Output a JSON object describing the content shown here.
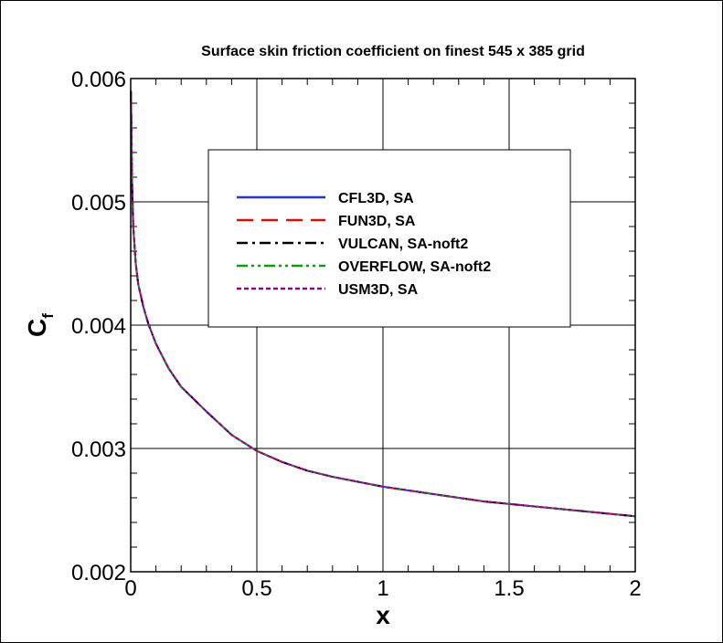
{
  "chart_data": {
    "type": "line",
    "title": "Surface skin friction coefficient on finest 545 x 385 grid",
    "xlabel": "x",
    "ylabel": "C",
    "ylabel_subscript": "f",
    "xlim": [
      0,
      2
    ],
    "ylim": [
      0.002,
      0.006
    ],
    "xticks": [
      0,
      0.5,
      1,
      1.5,
      2
    ],
    "xtick_labels": [
      "0",
      "0.5",
      "1",
      "1.5",
      "2"
    ],
    "yticks": [
      0.002,
      0.003,
      0.004,
      0.005,
      0.006
    ],
    "ytick_labels": [
      "0.002",
      "0.003",
      "0.004",
      "0.005",
      "0.006"
    ],
    "grid": true,
    "legend_position": "upper-center",
    "x": [
      0.001,
      0.005,
      0.01,
      0.02,
      0.03,
      0.05,
      0.07,
      0.1,
      0.15,
      0.2,
      0.3,
      0.4,
      0.5,
      0.6,
      0.7,
      0.8,
      1.0,
      1.2,
      1.4,
      1.6,
      1.8,
      2.0
    ],
    "series": [
      {
        "name": "CFL3D, SA",
        "color": "#2233dd",
        "dash": "solid",
        "values": [
          0.0059,
          0.0052,
          0.0048,
          0.0045,
          0.00433,
          0.00415,
          0.00401,
          0.00385,
          0.00365,
          0.0035,
          0.0033,
          0.00311,
          0.00298,
          0.00289,
          0.00282,
          0.00277,
          0.00269,
          0.00263,
          0.00257,
          0.00253,
          0.00249,
          0.00245
        ]
      },
      {
        "name": "FUN3D, SA",
        "color": "#cc1111",
        "dash": "long-dash",
        "values": [
          0.0059,
          0.0052,
          0.0048,
          0.0045,
          0.00433,
          0.00415,
          0.00401,
          0.00385,
          0.00365,
          0.0035,
          0.0033,
          0.00311,
          0.00298,
          0.00289,
          0.00282,
          0.00277,
          0.00269,
          0.00263,
          0.00257,
          0.00253,
          0.00249,
          0.00245
        ]
      },
      {
        "name": "VULCAN, SA-noft2",
        "color": "#000000",
        "dash": "dash-dot",
        "values": [
          0.0059,
          0.0052,
          0.0048,
          0.0045,
          0.00433,
          0.00415,
          0.00401,
          0.00385,
          0.00365,
          0.0035,
          0.0033,
          0.00311,
          0.00298,
          0.00289,
          0.00282,
          0.00277,
          0.00269,
          0.00263,
          0.00257,
          0.00253,
          0.00249,
          0.00245
        ]
      },
      {
        "name": "OVERFLOW, SA-noft2",
        "color": "#119911",
        "dash": "dash-dot-dot",
        "values": [
          0.0059,
          0.0052,
          0.0048,
          0.0045,
          0.00433,
          0.00415,
          0.00401,
          0.00385,
          0.00365,
          0.0035,
          0.0033,
          0.00311,
          0.00298,
          0.00289,
          0.00282,
          0.00277,
          0.00269,
          0.00263,
          0.00257,
          0.00253,
          0.00249,
          0.00245
        ]
      },
      {
        "name": "USM3D, SA",
        "color": "#990099",
        "dash": "short-dash",
        "values": [
          0.0059,
          0.0052,
          0.0048,
          0.0045,
          0.00433,
          0.00415,
          0.00401,
          0.00385,
          0.00365,
          0.0035,
          0.0033,
          0.00311,
          0.00298,
          0.00289,
          0.00282,
          0.00277,
          0.00269,
          0.00263,
          0.00257,
          0.00253,
          0.00249,
          0.00245
        ]
      }
    ]
  }
}
